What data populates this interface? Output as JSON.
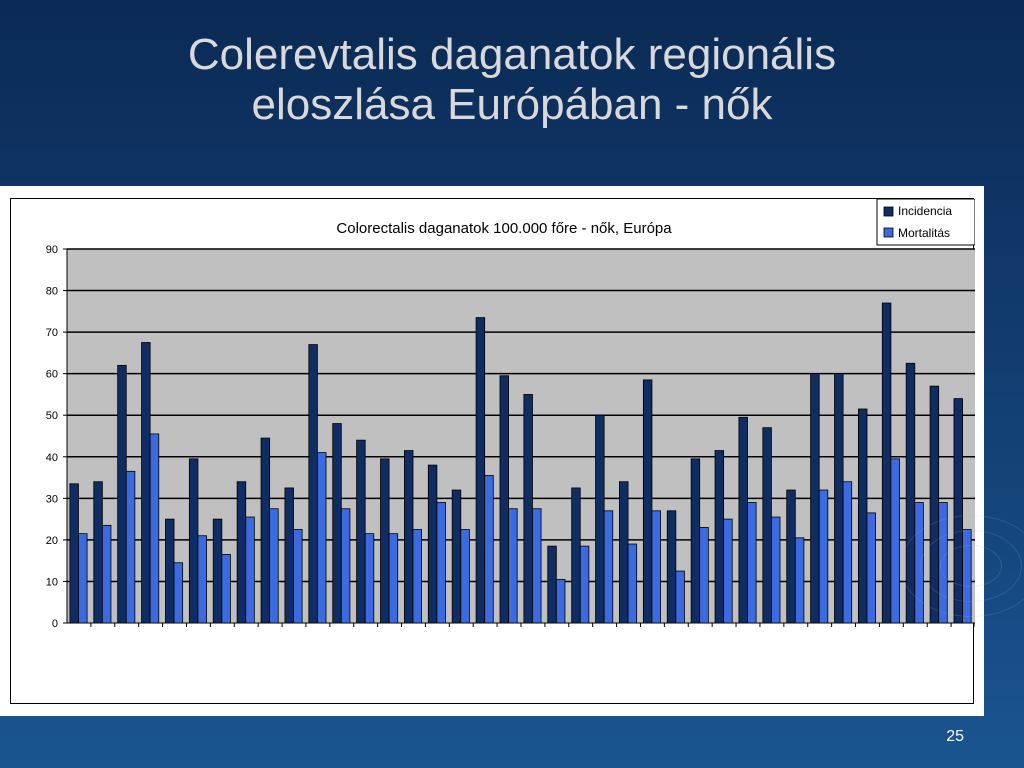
{
  "slide": {
    "title_line1": "Colerevtalis daganatok regionális",
    "title_line2": "eloszlása Európában - nők",
    "page_number": "25"
  },
  "colors": {
    "incidence": "#0f2d63",
    "mortality": "#3c6ae0",
    "plot_bg": "#c0c0c0"
  },
  "chart_data": {
    "type": "bar",
    "title": "Colorectalis daganatok 100.000 főre - nők, Európa",
    "xlabel": "",
    "ylabel": "",
    "ylim": [
      0,
      90
    ],
    "yticks": [
      0,
      10,
      20,
      30,
      40,
      50,
      60,
      70,
      80,
      90
    ],
    "grid": true,
    "legend_position": "top-right",
    "category_count": 38,
    "series": [
      {
        "name": "Incidencia",
        "values": [
          33.5,
          34,
          62,
          67.5,
          25,
          39.5,
          25,
          34,
          44.5,
          32.5,
          67,
          48,
          44,
          39.5,
          41.5,
          38,
          32,
          73.5,
          59.5,
          55,
          18.5,
          32.5,
          50,
          34,
          58.5,
          27,
          39.5,
          41.5,
          49.5,
          47,
          32,
          60,
          60,
          51.5,
          77,
          62.5,
          57,
          54
        ]
      },
      {
        "name": "Mortalitás",
        "values": [
          21.5,
          23.5,
          36.5,
          45.5,
          14.5,
          21,
          16.5,
          25.5,
          27.5,
          22.5,
          41,
          27.5,
          21.5,
          21.5,
          22.5,
          29,
          22.5,
          35.5,
          27.5,
          27.5,
          10.5,
          18.5,
          27,
          19,
          27,
          12.5,
          23,
          25,
          29,
          25.5,
          20.5,
          32,
          34,
          26.5,
          39.5,
          29,
          29,
          22.5
        ]
      }
    ]
  }
}
